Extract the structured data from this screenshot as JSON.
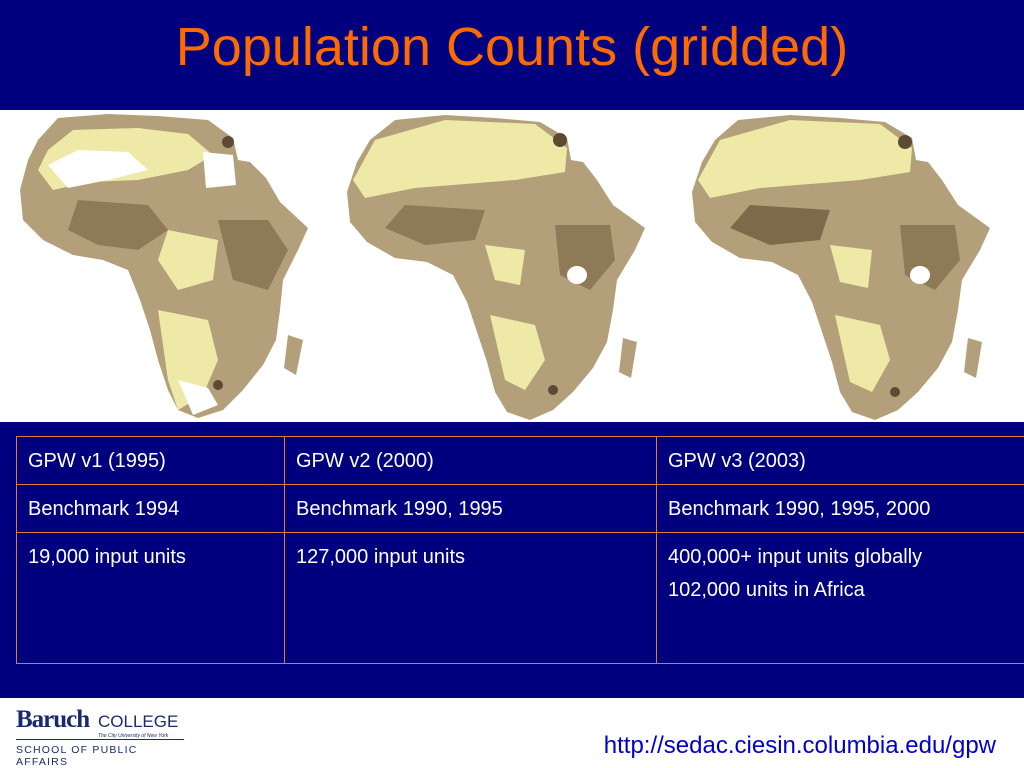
{
  "slide": {
    "title": "Population Counts (gridded)",
    "colors": {
      "background": "#00007f",
      "title": "#ff6a00",
      "table_border": "#e07b2c",
      "url": "#0000cc",
      "map_land_light": "#efe9a8",
      "map_land_mid": "#b3a07a",
      "map_land_dark": "#5c4b32"
    }
  },
  "maps": [
    {
      "label_icon": "africa-map-gpw-v1-icon"
    },
    {
      "label_icon": "africa-map-gpw-v2-icon"
    },
    {
      "label_icon": "africa-map-gpw-v3-icon"
    }
  ],
  "table": {
    "rows": [
      [
        "GPW v1 (1995)",
        "GPW v2 (2000)",
        "GPW v3 (2003)"
      ],
      [
        "Benchmark 1994",
        "Benchmark 1990, 1995",
        "Benchmark 1990, 1995, 2000"
      ],
      [
        "19,000 input units",
        "127,000 input units",
        "400,000+ input units globally"
      ]
    ],
    "row3_col3_line2": "102,000 units in Africa"
  },
  "footer": {
    "logo_baruch": "Baruch",
    "logo_college": "COLLEGE",
    "logo_cuny": "The City University of New York",
    "logo_spa": "SCHOOL OF PUBLIC AFFAIRS",
    "url": "http://sedac.ciesin.columbia.edu/gpw"
  }
}
